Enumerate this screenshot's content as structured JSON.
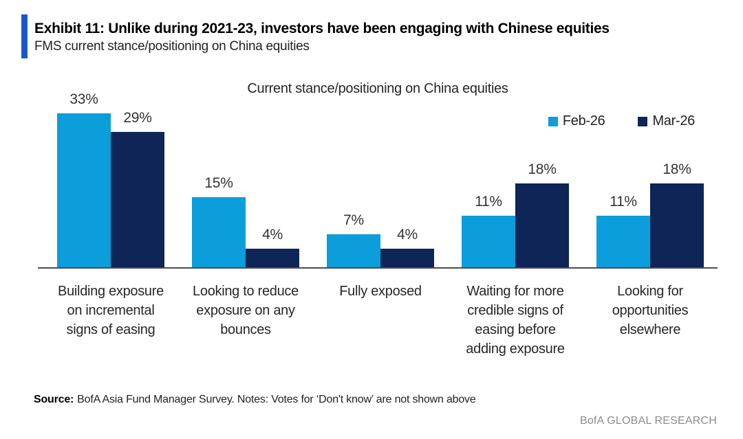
{
  "exhibit": {
    "title": "Exhibit 11: Unlike during 2021-23, investors have been engaging with Chinese equities",
    "subtitle": "FMS current stance/positioning on China equities",
    "accent_color": "#1C57C9"
  },
  "chart_data": {
    "type": "bar",
    "title": "Current stance/positioning on China equities",
    "categories": [
      "Building exposure on incremental signs of easing",
      "Looking to reduce exposure on any bounces",
      "Fully exposed",
      "Waiting for more credible signs of easing before adding exposure",
      "Looking for opportunities elsewhere"
    ],
    "series": [
      {
        "name": "Feb-26",
        "color": "#0C9DDB",
        "values": [
          33,
          15,
          7,
          11,
          11
        ]
      },
      {
        "name": "Mar-26",
        "color": "#0F2557",
        "values": [
          29,
          4,
          4,
          18,
          18
        ]
      }
    ],
    "value_suffix": "%",
    "ylim": [
      0,
      35
    ],
    "data_labels": true,
    "gridlines": false,
    "legend_position": "top-right",
    "axis_line_color": "#4D4D4D"
  },
  "footer": {
    "source_label": "Source:",
    "source_text": "BofA Asia Fund Manager Survey. Notes: Votes for ‘Don't know’ are not shown above",
    "brand": "BofA GLOBAL RESEARCH"
  }
}
